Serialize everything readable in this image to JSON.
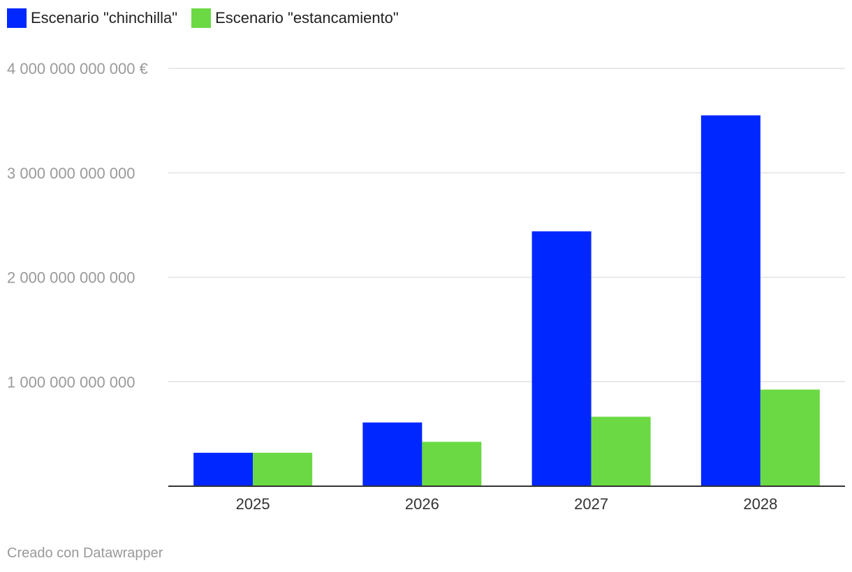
{
  "legend": {
    "items": [
      {
        "label": "Escenario \"chinchilla\"",
        "color": "#0027ff"
      },
      {
        "label": "Escenario \"estancamiento\"",
        "color": "#6bd944"
      }
    ]
  },
  "footer": {
    "credit": "Creado con Datawrapper"
  },
  "chart_data": {
    "type": "bar",
    "categories": [
      "2025",
      "2026",
      "2027",
      "2028"
    ],
    "series": [
      {
        "name": "Escenario \"chinchilla\"",
        "color": "#0027ff",
        "values": [
          320000000000,
          610000000000,
          2440000000000,
          3550000000000
        ]
      },
      {
        "name": "Escenario \"estancamiento\"",
        "color": "#6bd944",
        "values": [
          320000000000,
          425000000000,
          665000000000,
          925000000000
        ]
      }
    ],
    "ylim": [
      0,
      4000000000000
    ],
    "yticks": [
      1000000000000,
      2000000000000,
      3000000000000,
      4000000000000
    ],
    "ytick_labels": [
      "1 000 000 000 000",
      "2 000 000 000 000",
      "3 000 000 000 000",
      "4 000 000 000 000 €"
    ],
    "grid": true,
    "legend_position": "top-left",
    "title": "",
    "xlabel": "",
    "ylabel": ""
  }
}
